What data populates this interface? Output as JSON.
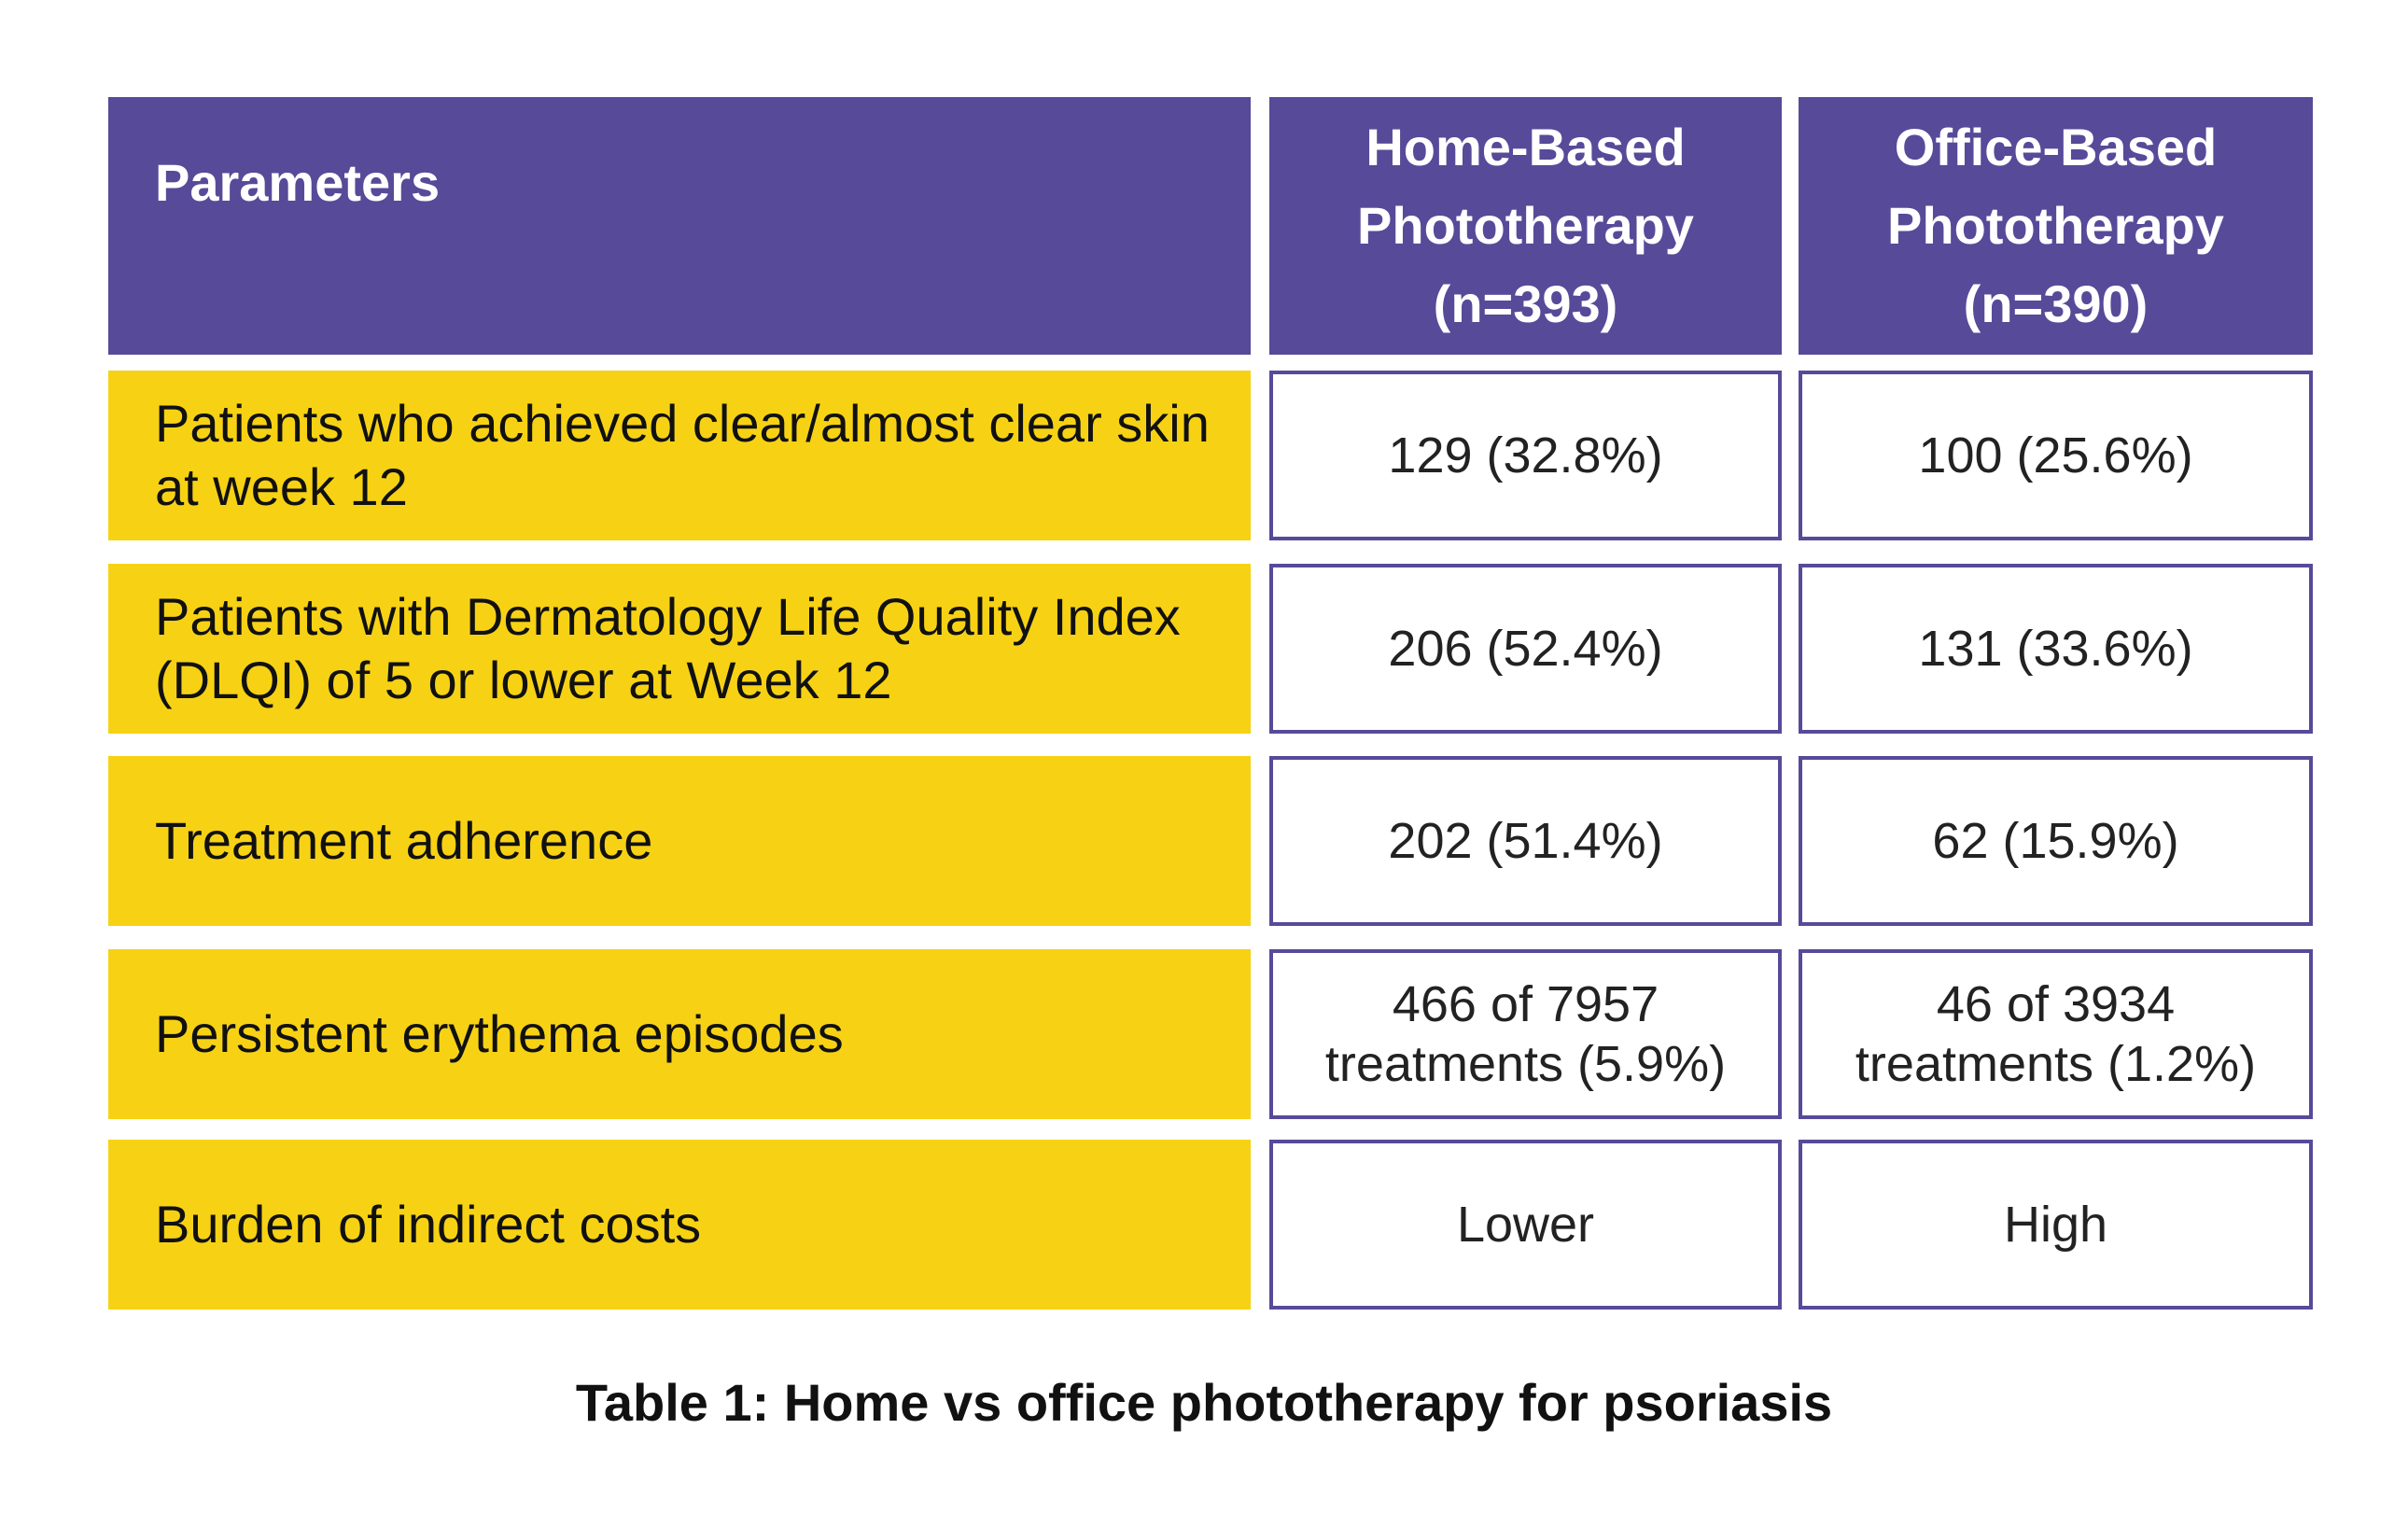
{
  "table": {
    "headers": [
      "Parameters",
      "Home-Based\nPhototherapy\n(n=393)",
      "Office-Based\nPhototherapy\n(n=390)"
    ],
    "rows": [
      {
        "parameter": "Patients who achieved clear/almost clear skin at week 12",
        "home": "129 (32.8%)",
        "office": "100 (25.6%)"
      },
      {
        "parameter": "Patients with  Dermatology Life Quality Index (DLQI) of 5 or lower at Week 12",
        "home": "206 (52.4%)",
        "office": "131 (33.6%)"
      },
      {
        "parameter": "Treatment adherence",
        "home": "202 (51.4%)",
        "office": "62 (15.9%)"
      },
      {
        "parameter": "Persistent erythema episodes",
        "home": "466 of 7957\ntreatments (5.9%)",
        "office": "46 of 3934\ntreatments (1.2%)"
      },
      {
        "parameter": "Burden of indirect costs",
        "home": "Lower",
        "office": "High"
      }
    ]
  },
  "caption": "Table 1: Home vs office phototherapy for psoriasis",
  "colors": {
    "header": "#574a99",
    "label": "#f7d214"
  }
}
